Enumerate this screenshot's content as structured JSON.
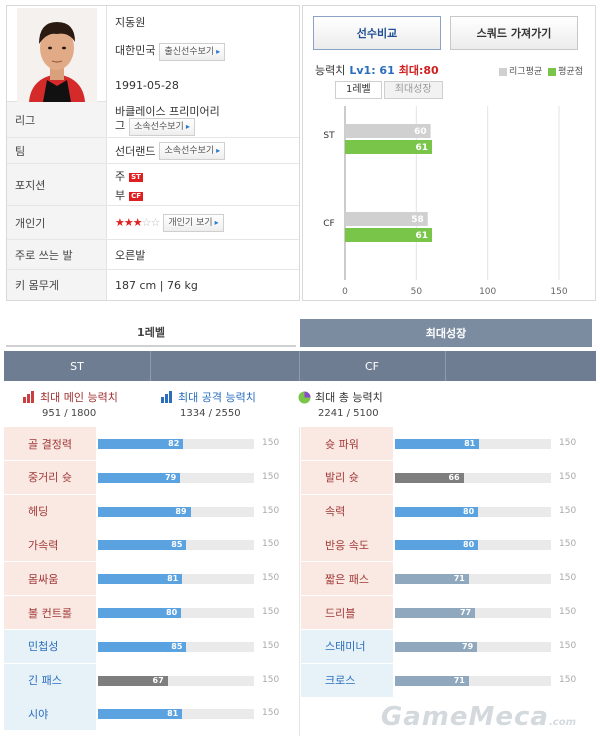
{
  "profile": {
    "name": "지동원",
    "country": "대한민국",
    "country_btn": "출신선수보기",
    "birth": "1991-05-28",
    "league_label": "리그",
    "league_value_line1": "바클레이스 프리미어리",
    "league_value_line2": "그",
    "league_btn": "소속선수보기",
    "team_label": "팀",
    "team_value": "선더랜드",
    "team_btn": "소속선수보기",
    "position_label": "포지션",
    "position_main": "주",
    "position_main_tag": "ST",
    "position_sub": "부",
    "position_sub_tag": "CF",
    "popularity_label": "개인기",
    "popularity_stars_on": "★★★",
    "popularity_stars_off": "☆☆",
    "popularity_btn": "개인기 보기",
    "foot_label": "주로 쓰는 발",
    "foot_value": "오른발",
    "body_label": "키 몸무게",
    "body_value": "187 cm | 76 kg"
  },
  "actions": {
    "compare": "선수비교",
    "squad": "스쿼드 가져가기"
  },
  "ability": {
    "label": "능력치",
    "lv": "Lv1: 61",
    "max": "최대:80",
    "legend_league": "리그평균",
    "legend_avg": "평균점",
    "tab_lv1": "1레벨",
    "tab_max": "최대성장"
  },
  "colors": {
    "league_avg": "#d0d0d0",
    "player": "#79c54a",
    "bar_blue": "#5aa3e0",
    "bar_gray": "#7e7e7e",
    "bar_steel": "#8fa8bd",
    "pos_header": "#6e7d92"
  },
  "chart_data": {
    "type": "bar",
    "orientation": "horizontal",
    "categories": [
      "ST",
      "CF"
    ],
    "series": [
      {
        "name": "리그평균",
        "values": [
          60,
          58
        ]
      },
      {
        "name": "평균점",
        "values": [
          61,
          61
        ]
      }
    ],
    "xlim": [
      0,
      150
    ],
    "xticks": [
      0,
      50,
      100,
      150
    ]
  },
  "bottom": {
    "tab_lv1": "1레벨",
    "tab_max": "최대성장",
    "pos_st": "ST",
    "pos_cf": "CF",
    "total_main_label": "최대 메인 능력치",
    "total_main_value": "951 / 1800",
    "total_atk_label": "최대 공격 능력치",
    "total_atk_value": "1334 / 2550",
    "total_sum_label": "최대 총 능력치",
    "total_sum_value": "2241 / 5100",
    "max_label": "150",
    "st_stats": [
      {
        "name": "골 결정력",
        "value": 82,
        "kind": "main",
        "color": "blue"
      },
      {
        "name": "중거리 슛",
        "value": 79,
        "kind": "main",
        "color": "blue"
      },
      {
        "name": "헤딩",
        "value": 89,
        "kind": "main",
        "color": "blue"
      },
      {
        "name": "가속력",
        "value": 85,
        "kind": "main",
        "color": "blue"
      },
      {
        "name": "몸싸움",
        "value": 81,
        "kind": "main",
        "color": "blue"
      },
      {
        "name": "볼 컨트롤",
        "value": 80,
        "kind": "main",
        "color": "blue"
      },
      {
        "name": "민첩성",
        "value": 85,
        "kind": "sub",
        "color": "blue"
      },
      {
        "name": "긴 패스",
        "value": 67,
        "kind": "sub",
        "color": "gray"
      },
      {
        "name": "시야",
        "value": 81,
        "kind": "sub",
        "color": "blue"
      }
    ],
    "cf_stats": [
      {
        "name": "슛 파워",
        "value": 81,
        "kind": "main",
        "color": "blue"
      },
      {
        "name": "발리 슛",
        "value": 66,
        "kind": "main",
        "color": "gray"
      },
      {
        "name": "속력",
        "value": 80,
        "kind": "main",
        "color": "blue"
      },
      {
        "name": "반응 속도",
        "value": 80,
        "kind": "main",
        "color": "blue"
      },
      {
        "name": "짧은 패스",
        "value": 71,
        "kind": "main",
        "color": "steel"
      },
      {
        "name": "드리블",
        "value": 77,
        "kind": "main",
        "color": "steel"
      },
      {
        "name": "스태미너",
        "value": 79,
        "kind": "sub",
        "color": "steel"
      },
      {
        "name": "크로스",
        "value": 71,
        "kind": "sub",
        "color": "steel"
      }
    ]
  },
  "watermark": "GameMeca",
  "watermark_suffix": ".com"
}
